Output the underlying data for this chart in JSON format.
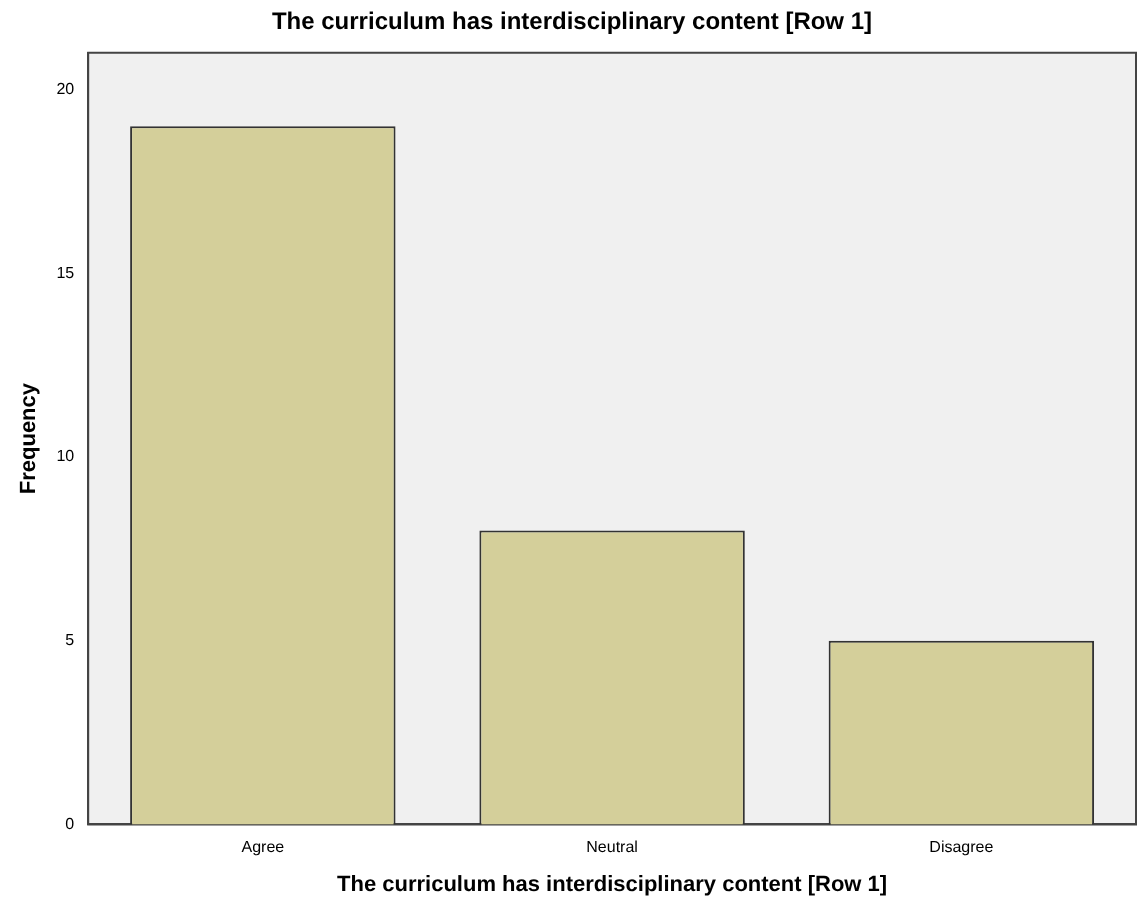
{
  "chart_data": {
    "type": "bar",
    "title": "The curriculum has interdisciplinary content [Row 1]",
    "xlabel": "The curriculum has interdisciplinary content [Row 1]",
    "ylabel": "Frequency",
    "categories": [
      "Agree",
      "Neutral",
      "Disagree"
    ],
    "values": [
      19,
      8,
      5
    ],
    "color": "#d4cf9a",
    "ylim": [
      0,
      21
    ],
    "yticks": [
      0,
      5,
      10,
      15,
      20
    ],
    "grid": false,
    "legend": false
  }
}
